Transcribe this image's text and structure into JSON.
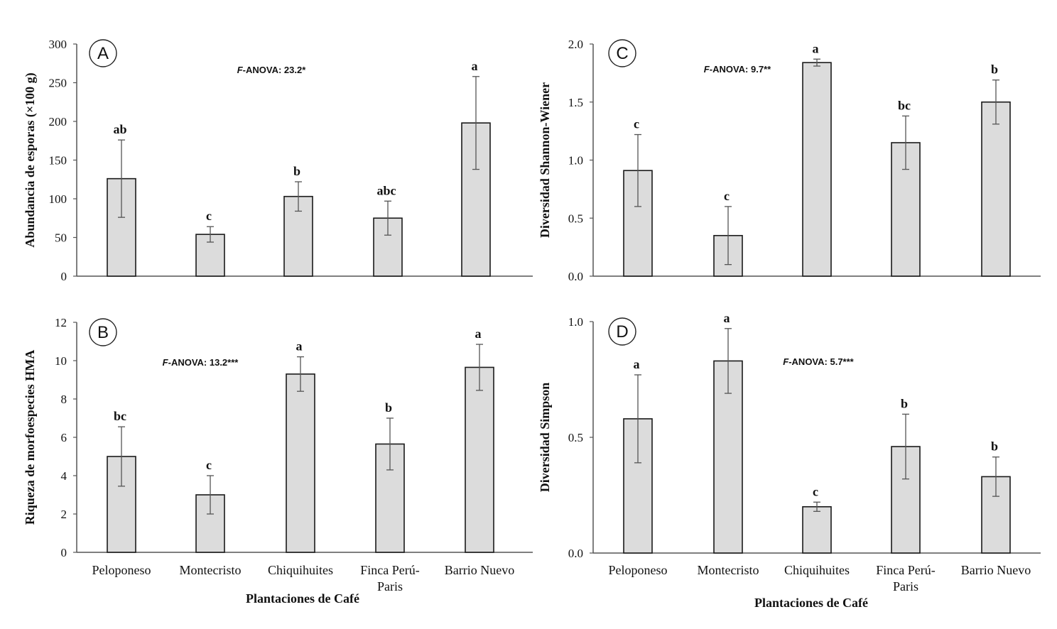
{
  "figure": {
    "x_axis_title_left": "Plantaciones de Café",
    "x_axis_title_right": "Plantaciones de Café",
    "categories": [
      "Peloponeso",
      "Montecristo",
      "Chiquihuites",
      [
        "Finca Perú-",
        "Paris"
      ],
      "Barrio Nuevo"
    ],
    "colors": {
      "bar_fill": "#dcdcdc",
      "bar_stroke": "#1a1a1a",
      "axis": "#555555",
      "error_bar": "#555555"
    }
  },
  "chart_data": [
    {
      "id": "A",
      "type": "bar",
      "letter": "A",
      "ylabel": "Abundancia de esporas (×100 g)",
      "anova_prefix": "F",
      "anova_text": "-ANOVA: 23.2*",
      "ylim": [
        0,
        300
      ],
      "ticks": [
        "0",
        "50",
        "100",
        "150",
        "200",
        "250",
        "300"
      ],
      "tick_values": [
        0,
        50,
        100,
        150,
        200,
        250,
        300
      ],
      "values": [
        126,
        54,
        103,
        75,
        198
      ],
      "errors": [
        50,
        10,
        19,
        22,
        60
      ],
      "significance": [
        "ab",
        "c",
        "b",
        "abc",
        "a"
      ]
    },
    {
      "id": "B",
      "type": "bar",
      "letter": "B",
      "ylabel": "Riqueza de morfoespecies HMA",
      "anova_prefix": "F",
      "anova_text": "-ANOVA: 13.2***",
      "ylim": [
        0,
        12
      ],
      "ticks": [
        "0",
        "2",
        "4",
        "6",
        "8",
        "10",
        "12"
      ],
      "tick_values": [
        0,
        2,
        4,
        6,
        8,
        10,
        12
      ],
      "values": [
        5.0,
        3.0,
        9.3,
        5.65,
        9.65
      ],
      "errors": [
        1.55,
        1.0,
        0.9,
        1.35,
        1.2
      ],
      "significance": [
        "bc",
        "c",
        "a",
        "b",
        "a"
      ]
    },
    {
      "id": "C",
      "type": "bar",
      "letter": "C",
      "ylabel": "Diversidad Shannon-Wiener",
      "anova_prefix": "F",
      "anova_text": "-ANOVA: 9.7**",
      "ylim": [
        0,
        2.0
      ],
      "ticks": [
        "0.0",
        "0.5",
        "1.0",
        "1.5",
        "2.0"
      ],
      "tick_values": [
        0,
        0.5,
        1.0,
        1.5,
        2.0
      ],
      "values": [
        0.91,
        0.35,
        1.84,
        1.15,
        1.5
      ],
      "errors": [
        0.31,
        0.25,
        0.03,
        0.23,
        0.19
      ],
      "significance": [
        "c",
        "c",
        "a",
        "bc",
        "b"
      ]
    },
    {
      "id": "D",
      "type": "bar",
      "letter": "D",
      "ylabel": "Diversidad Simpson",
      "anova_prefix": "F",
      "anova_text": "-ANOVA: 5.7***",
      "ylim": [
        0,
        1.0
      ],
      "ticks": [
        "0.0",
        "0.5",
        "1.0"
      ],
      "tick_values": [
        0,
        0.5,
        1.0
      ],
      "values": [
        0.58,
        0.83,
        0.2,
        0.46,
        0.33
      ],
      "errors": [
        0.19,
        0.14,
        0.02,
        0.14,
        0.085
      ],
      "significance": [
        "a",
        "a",
        "c",
        "b",
        "b"
      ]
    }
  ]
}
